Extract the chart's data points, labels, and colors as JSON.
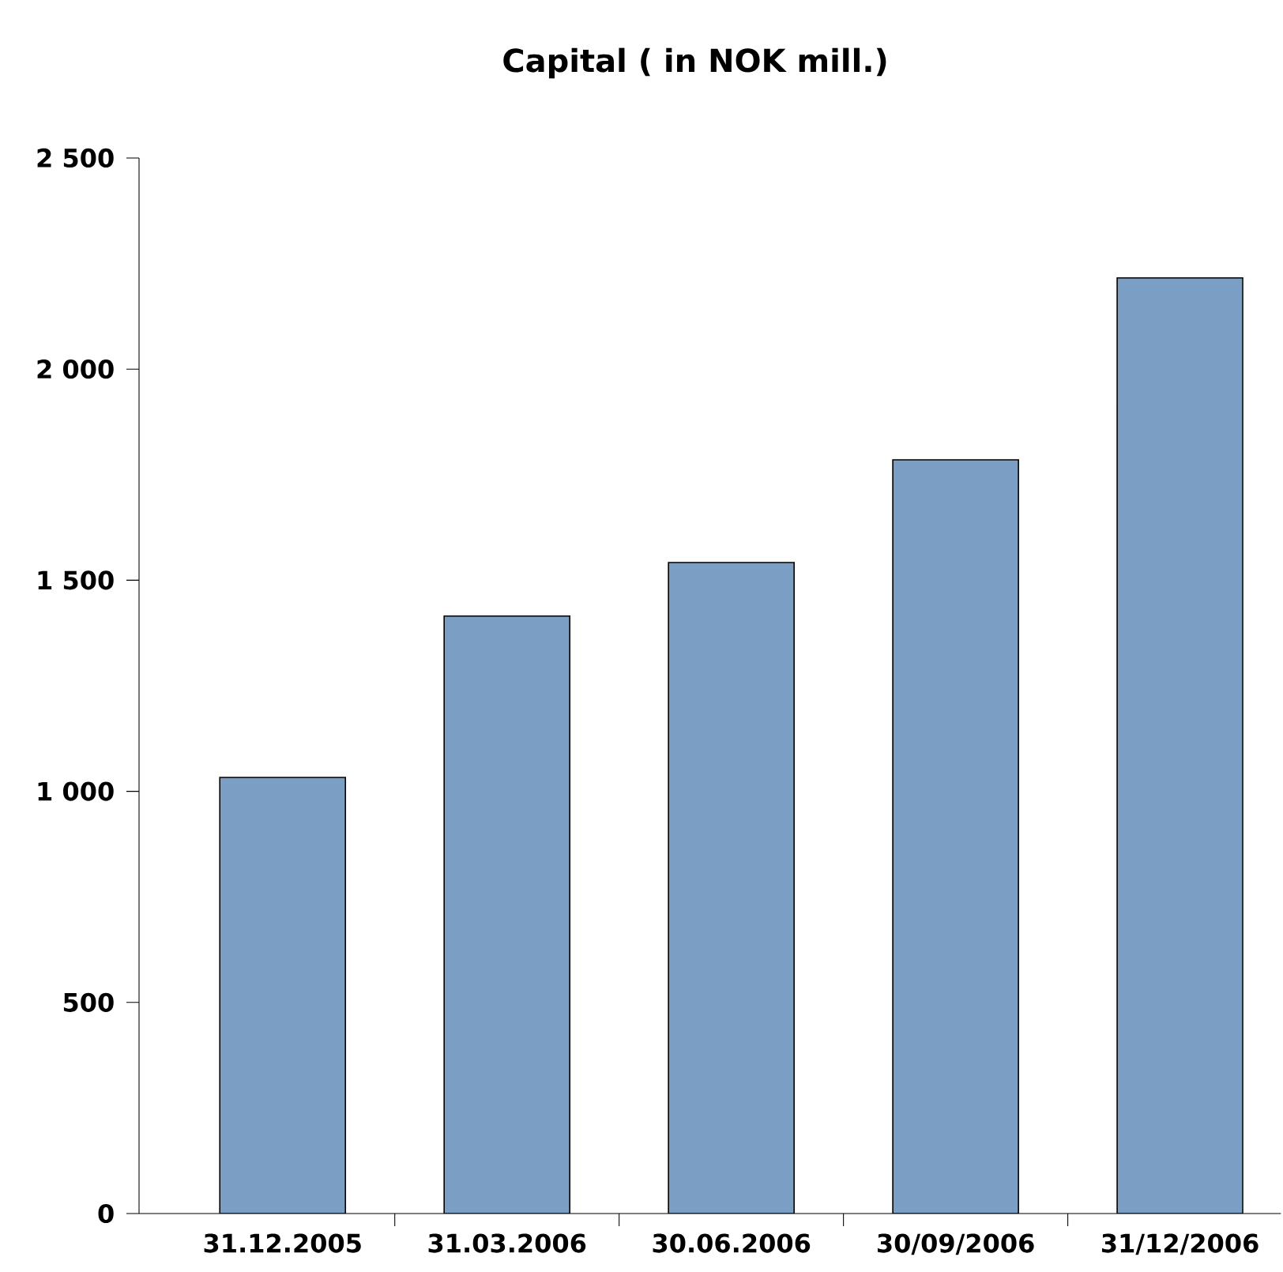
{
  "chart_data": {
    "type": "bar",
    "title": "Capital ( in NOK mill.)",
    "categories": [
      "31.12.2005",
      "31.03.2006",
      "30.06.2006",
      "30/09/2006",
      "31/12/2006"
    ],
    "values": [
      1033,
      1415,
      1542,
      1785,
      2216
    ],
    "color": "#7b9ec4",
    "ylim": [
      0,
      2500
    ],
    "yticks": [
      0,
      500,
      {
        "value": 1000,
        "label": "1 000"
      },
      {
        "value": 1500,
        "label": "1 500"
      },
      {
        "value": 2000,
        "label": "2 000"
      },
      {
        "value": 2500,
        "label": "2 500"
      }
    ],
    "grid": false
  }
}
